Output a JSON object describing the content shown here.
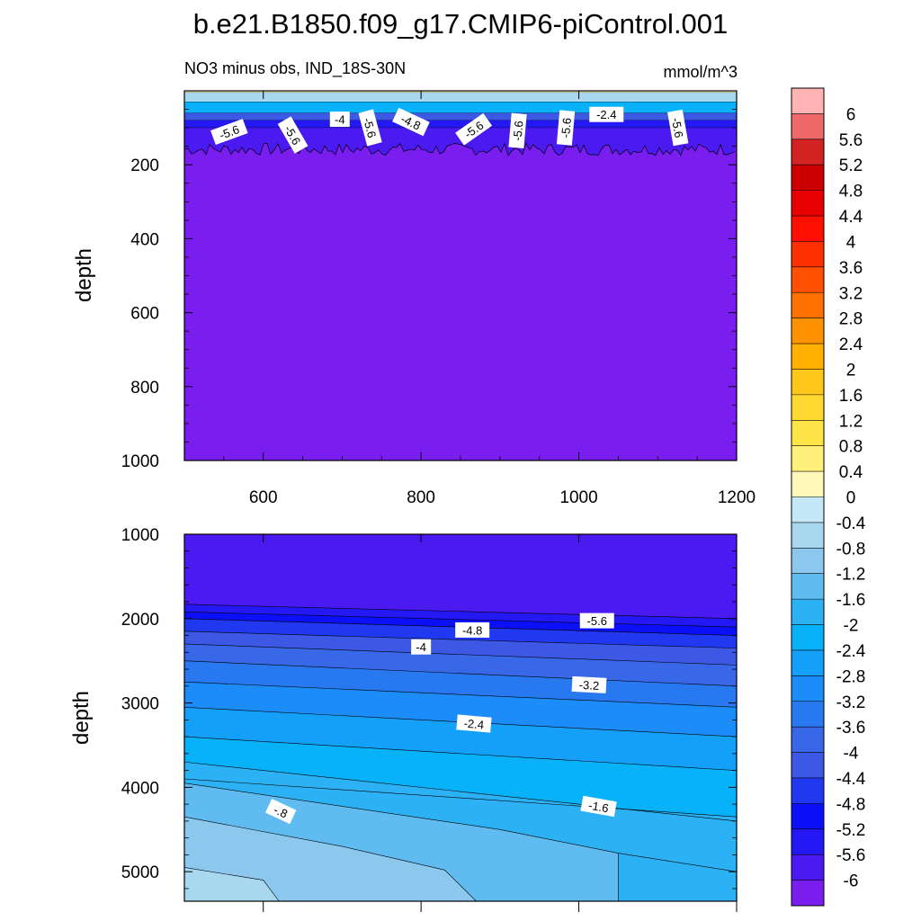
{
  "title": "b.e21.B1850.f09_g17.CMIP6-piControl.001",
  "subtitle": "NO3 minus obs, IND_18S-30N",
  "units": "mmol/m^3",
  "colorbar": {
    "levels": [
      "6",
      "5.6",
      "5.2",
      "4.8",
      "4.4",
      "4",
      "3.6",
      "3.2",
      "2.8",
      "2.4",
      "2",
      "1.6",
      "1.2",
      "0.8",
      "0.4",
      "0",
      "-0.4",
      "-0.8",
      "-1.2",
      "-1.6",
      "-2",
      "-2.4",
      "-2.8",
      "-3.2",
      "-3.6",
      "-4",
      "-4.4",
      "-4.8",
      "-5.2",
      "-5.6",
      "-6"
    ],
    "colors": [
      "#ffb3b3",
      "#ee6a6a",
      "#d32222",
      "#cc0000",
      "#e60000",
      "#ff0f00",
      "#ff3000",
      "#ff5000",
      "#ff7200",
      "#ff9200",
      "#ffb000",
      "#ffc71a",
      "#ffd832",
      "#ffe447",
      "#fff07a",
      "#fff8b8",
      "#c4e8f8",
      "#a8d8f0",
      "#8cc8ee",
      "#60bcf0",
      "#2cb2f4",
      "#08b2f8",
      "#14a0f8",
      "#1c8cf8",
      "#2878f0",
      "#3868e8",
      "#3c58e4",
      "#2038f0",
      "#0c10f8",
      "#2418f4",
      "#4a1af0",
      "#7a1ef0"
    ]
  },
  "chart_data": [
    {
      "type": "contour",
      "panel": "upper",
      "xlabel": "",
      "ylabel": "depth",
      "xlim": [
        500,
        1200
      ],
      "ylim": [
        1000,
        0
      ],
      "x_ticks": [
        "600",
        "800",
        "1000",
        "1200"
      ],
      "y_ticks": [
        "200",
        "400",
        "600",
        "800",
        "1000"
      ],
      "fill_value": -6,
      "near_surface_band": [
        {
          "depth_top": 0,
          "depth_bottom": 5,
          "value": 0.2
        },
        {
          "depth_top": 5,
          "depth_bottom": 30,
          "value": -0.6
        },
        {
          "depth_top": 30,
          "depth_bottom": 60,
          "value": -2.2
        },
        {
          "depth_top": 60,
          "depth_bottom": 80,
          "value": -4.2
        },
        {
          "depth_top": 80,
          "depth_bottom": 100,
          "value": -5.4
        },
        {
          "depth_top": 100,
          "depth_bottom": 175,
          "value": -5.8
        }
      ],
      "contour_labels": [
        {
          "text": "-5.6",
          "x": 557,
          "y": 112
        },
        {
          "text": "-5.6",
          "x": 637,
          "y": 120
        },
        {
          "text": "-4",
          "x": 697,
          "y": 78
        },
        {
          "text": "-5.6",
          "x": 735,
          "y": 100
        },
        {
          "text": "-4.8",
          "x": 787,
          "y": 85
        },
        {
          "text": "-5.6",
          "x": 867,
          "y": 105
        },
        {
          "text": "-5.6",
          "x": 923,
          "y": 108
        },
        {
          "text": "-5.6",
          "x": 984,
          "y": 100
        },
        {
          "text": "-2.4",
          "x": 1035,
          "y": 65
        },
        {
          "text": "-5.6",
          "x": 1125,
          "y": 100
        }
      ]
    },
    {
      "type": "contour",
      "panel": "lower",
      "xlabel": "",
      "ylabel": "depth",
      "xlim": [
        500,
        1200
      ],
      "ylim": [
        5350,
        1000
      ],
      "y_ticks": [
        "1000",
        "2000",
        "3000",
        "4000",
        "5000"
      ],
      "fill_value": -6,
      "contour_labels": [
        {
          "text": "-5.6",
          "x": 1023,
          "y": 2030
        },
        {
          "text": "-4.8",
          "x": 865,
          "y": 2140
        },
        {
          "text": "-4",
          "x": 800,
          "y": 2340
        },
        {
          "text": "-3.2",
          "x": 1013,
          "y": 2790
        },
        {
          "text": "-2.4",
          "x": 867,
          "y": 3250
        },
        {
          "text": "-1.6",
          "x": 1025,
          "y": 4230
        },
        {
          "text": "-.8",
          "x": 622,
          "y": 4290
        }
      ]
    }
  ]
}
